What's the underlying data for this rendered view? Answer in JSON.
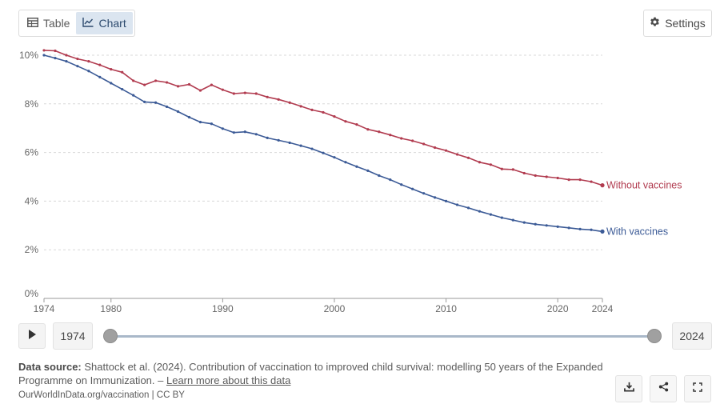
{
  "tabs": {
    "table_label": "Table",
    "chart_label": "Chart"
  },
  "settings": {
    "label": "Settings"
  },
  "timeline": {
    "start_year": "1974",
    "end_year": "2024"
  },
  "source": {
    "prefix": "Data source:",
    "text": "Shattock et al. (2024). Contribution of vaccination to improved child survival: modelling 50 years of the Expanded Programme on Immunization. –",
    "link": "Learn more about this data",
    "url_line": "OurWorldInData.org/vaccination | CC BY"
  },
  "colors": {
    "without": "#b13b4f",
    "with": "#3b5a96",
    "grid": "#d8d8d8"
  },
  "chart_data": {
    "type": "line",
    "x_ticks": [
      "1974",
      "1980",
      "1990",
      "2000",
      "2010",
      "2020",
      "2024"
    ],
    "y_ticks": [
      "0%",
      "2%",
      "4%",
      "6%",
      "8%",
      "10%"
    ],
    "ylim": [
      0,
      10
    ],
    "xlim": [
      1974,
      2024
    ],
    "x": [
      1974,
      1975,
      1976,
      1977,
      1978,
      1979,
      1980,
      1981,
      1982,
      1983,
      1984,
      1985,
      1986,
      1987,
      1988,
      1989,
      1990,
      1991,
      1992,
      1993,
      1994,
      1995,
      1996,
      1997,
      1998,
      1999,
      2000,
      2001,
      2002,
      2003,
      2004,
      2005,
      2006,
      2007,
      2008,
      2009,
      2010,
      2011,
      2012,
      2013,
      2014,
      2015,
      2016,
      2017,
      2018,
      2019,
      2020,
      2021,
      2022,
      2023,
      2024
    ],
    "series": [
      {
        "name": "Without vaccines",
        "values": [
          10.2,
          10.18,
          10.0,
          9.85,
          9.75,
          9.6,
          9.42,
          9.3,
          8.95,
          8.78,
          8.95,
          8.88,
          8.72,
          8.8,
          8.55,
          8.78,
          8.58,
          8.42,
          8.45,
          8.42,
          8.28,
          8.18,
          8.05,
          7.9,
          7.75,
          7.65,
          7.48,
          7.28,
          7.15,
          6.95,
          6.85,
          6.72,
          6.58,
          6.48,
          6.35,
          6.2,
          6.08,
          5.92,
          5.78,
          5.6,
          5.5,
          5.32,
          5.3,
          5.15,
          5.05,
          5.0,
          4.95,
          4.88,
          4.88,
          4.8,
          4.65
        ]
      },
      {
        "name": "With vaccines",
        "values": [
          10.0,
          9.88,
          9.75,
          9.55,
          9.35,
          9.1,
          8.85,
          8.6,
          8.35,
          8.08,
          8.05,
          7.88,
          7.68,
          7.45,
          7.25,
          7.18,
          6.98,
          6.82,
          6.85,
          6.75,
          6.6,
          6.5,
          6.4,
          6.28,
          6.15,
          5.98,
          5.8,
          5.6,
          5.42,
          5.25,
          5.05,
          4.88,
          4.68,
          4.5,
          4.32,
          4.15,
          4.0,
          3.85,
          3.72,
          3.58,
          3.45,
          3.32,
          3.22,
          3.12,
          3.05,
          3.0,
          2.95,
          2.9,
          2.85,
          2.82,
          2.75
        ]
      }
    ]
  }
}
